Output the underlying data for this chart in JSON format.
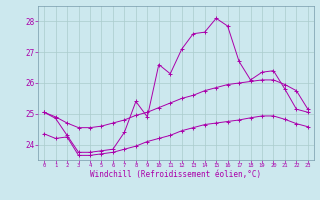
{
  "xlabel": "Windchill (Refroidissement éolien,°C)",
  "bg_color": "#cce8ee",
  "line_color": "#aa00aa",
  "grid_color": "#aacccc",
  "ylim": [
    23.5,
    28.5
  ],
  "xlim": [
    -0.5,
    23.5
  ],
  "yticks": [
    24,
    25,
    26,
    27,
    28
  ],
  "xticks": [
    0,
    1,
    2,
    3,
    4,
    5,
    6,
    7,
    8,
    9,
    10,
    11,
    12,
    13,
    14,
    15,
    16,
    17,
    18,
    19,
    20,
    21,
    22,
    23
  ],
  "series1_x": [
    0,
    1,
    2,
    3,
    4,
    5,
    6,
    7,
    8,
    9,
    10,
    11,
    12,
    13,
    14,
    15,
    16,
    17,
    18,
    19,
    20,
    21,
    22,
    23
  ],
  "series1_y": [
    25.05,
    24.85,
    24.3,
    23.75,
    23.75,
    23.8,
    23.85,
    24.4,
    25.4,
    24.9,
    26.6,
    26.3,
    27.1,
    27.6,
    27.65,
    28.1,
    27.85,
    26.7,
    26.1,
    26.35,
    26.4,
    25.8,
    25.15,
    25.05
  ],
  "series2_x": [
    0,
    1,
    2,
    3,
    4,
    5,
    6,
    7,
    8,
    9,
    10,
    11,
    12,
    13,
    14,
    15,
    16,
    17,
    18,
    19,
    20,
    21,
    22,
    23
  ],
  "series2_y": [
    25.05,
    24.9,
    24.7,
    24.55,
    24.55,
    24.6,
    24.7,
    24.8,
    24.95,
    25.05,
    25.2,
    25.35,
    25.5,
    25.6,
    25.75,
    25.85,
    25.95,
    26.0,
    26.05,
    26.1,
    26.1,
    25.95,
    25.75,
    25.15
  ],
  "series3_x": [
    0,
    1,
    2,
    3,
    4,
    5,
    6,
    7,
    8,
    9,
    10,
    11,
    12,
    13,
    14,
    15,
    16,
    17,
    18,
    19,
    20,
    21,
    22,
    23
  ],
  "series3_y": [
    24.35,
    24.2,
    24.25,
    23.65,
    23.65,
    23.7,
    23.75,
    23.85,
    23.95,
    24.1,
    24.2,
    24.3,
    24.45,
    24.55,
    24.65,
    24.7,
    24.75,
    24.8,
    24.87,
    24.93,
    24.93,
    24.82,
    24.68,
    24.58
  ]
}
